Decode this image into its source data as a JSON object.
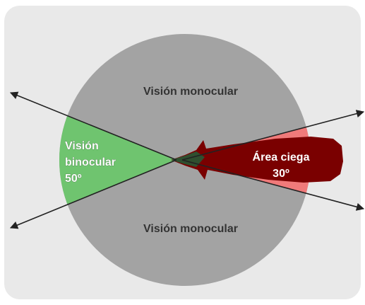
{
  "top_label": "Visión monocular",
  "binocular_label": [
    "Visión",
    "binocular",
    "50º"
  ],
  "blind_area_label": [
    "Área ciega",
    "30º"
  ],
  "bottom_label": "Visión monocular"
}
